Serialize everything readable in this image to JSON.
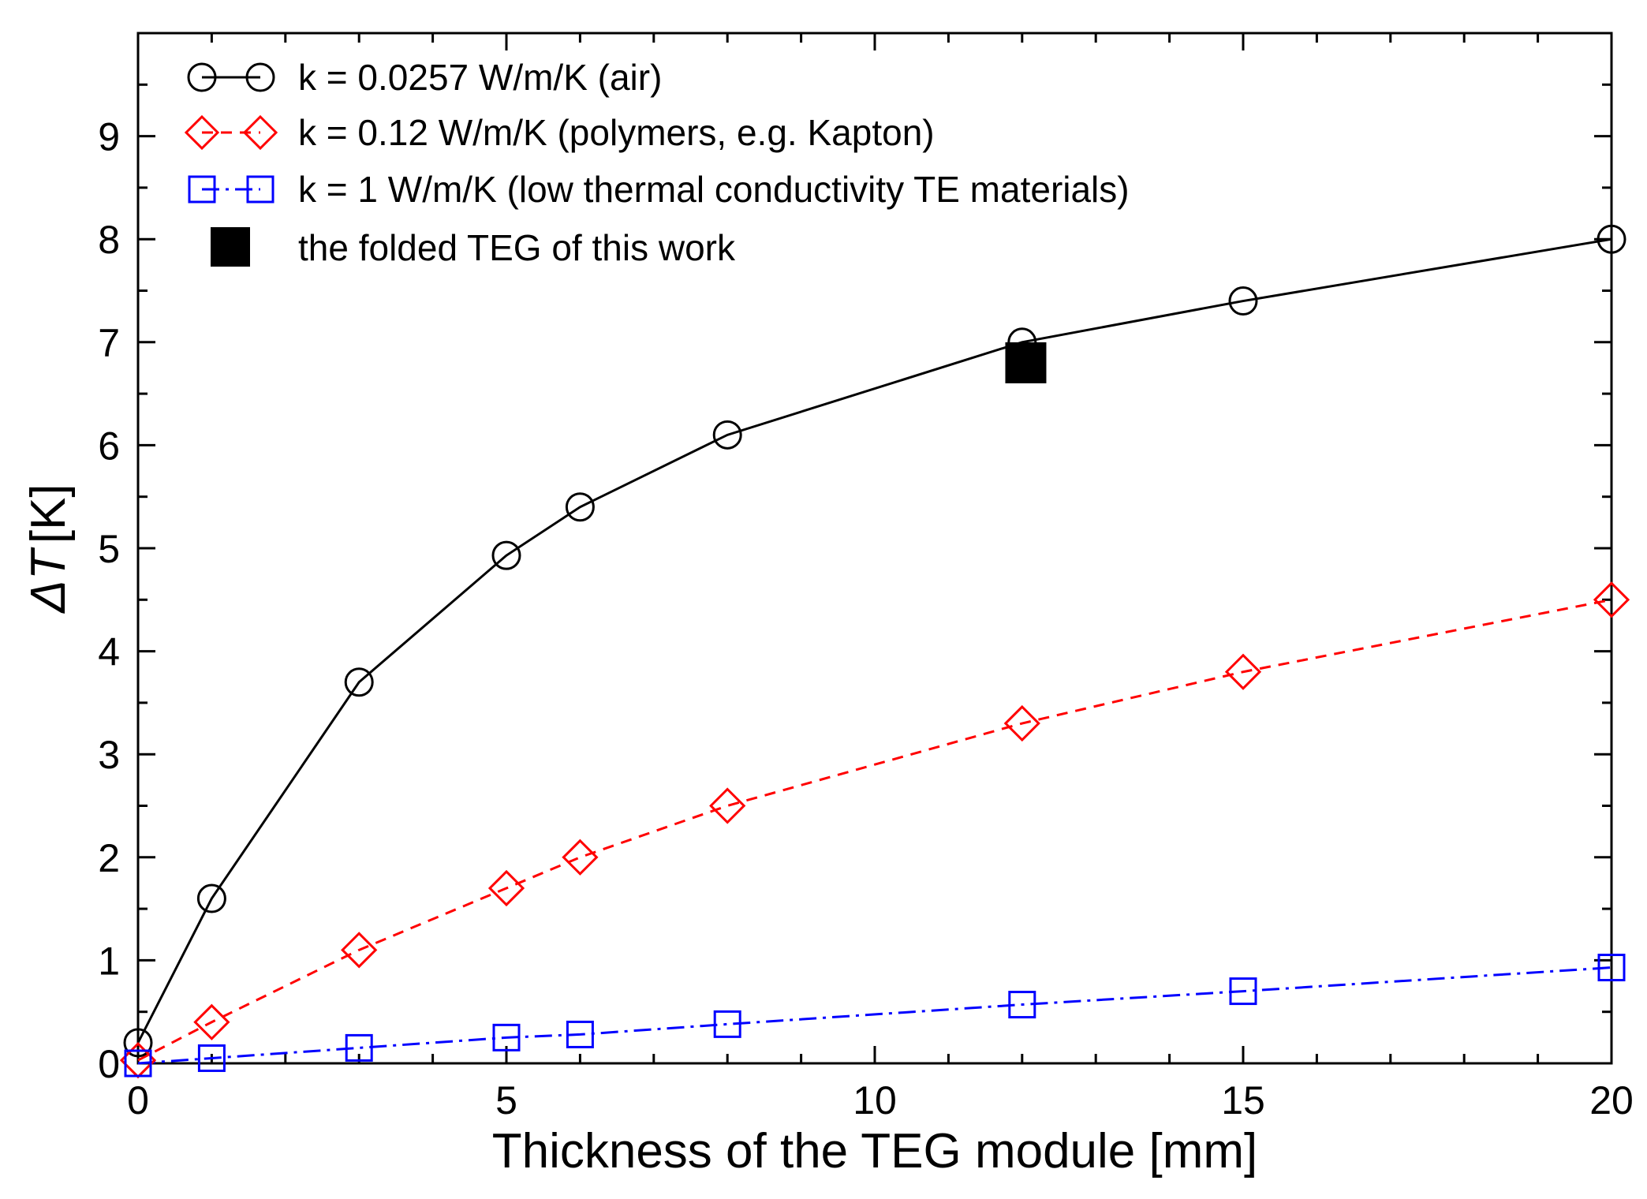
{
  "chart_data": {
    "type": "line",
    "title": "",
    "xlabel": "Thickness of the TEG module [mm]",
    "ylabel_symbol": "ΔT",
    "ylabel_unit": "[K]",
    "xlim": [
      0,
      20
    ],
    "ylim": [
      0,
      10
    ],
    "x_ticks": [
      0,
      5,
      10,
      15,
      20
    ],
    "x_tick_labels": [
      "0",
      "5",
      "10",
      "15",
      "20"
    ],
    "y_ticks": [
      0,
      1,
      2,
      3,
      4,
      5,
      6,
      7,
      8,
      9
    ],
    "y_tick_labels": [
      "0",
      "1",
      "2",
      "3",
      "4",
      "5",
      "6",
      "7",
      "8",
      "9"
    ],
    "grid": false,
    "legend_position": "top-left",
    "series": [
      {
        "name": "k = 0.0257 W/m/K (air)",
        "color": "#000000",
        "marker": "circle",
        "line_style": "solid",
        "x": [
          0,
          1,
          3,
          5,
          6,
          8,
          12,
          15,
          20
        ],
        "y": [
          0.2,
          1.6,
          3.7,
          4.93,
          5.4,
          6.1,
          7.0,
          7.4,
          8.0
        ]
      },
      {
        "name": "k = 0.12 W/m/K (polymers, e.g. Kapton)",
        "color": "#ff0000",
        "marker": "diamond",
        "line_style": "dashed",
        "x": [
          0,
          1,
          3,
          5,
          6,
          8,
          12,
          15,
          20
        ],
        "y": [
          0.03,
          0.4,
          1.1,
          1.7,
          2.0,
          2.5,
          3.3,
          3.8,
          4.5
        ]
      },
      {
        "name": "k = 1 W/m/K (low thermal conductivity TE materials)",
        "color": "#0000ff",
        "marker": "square",
        "line_style": "dashdot",
        "x": [
          0,
          1,
          3,
          5,
          6,
          8,
          12,
          15,
          20
        ],
        "y": [
          0.0,
          0.05,
          0.15,
          0.25,
          0.28,
          0.38,
          0.57,
          0.7,
          0.93
        ]
      },
      {
        "name": "the folded TEG of this work",
        "color": "#000000",
        "marker": "filled-square",
        "line_style": "none",
        "x": [
          12.05
        ],
        "y": [
          6.8
        ]
      }
    ]
  }
}
